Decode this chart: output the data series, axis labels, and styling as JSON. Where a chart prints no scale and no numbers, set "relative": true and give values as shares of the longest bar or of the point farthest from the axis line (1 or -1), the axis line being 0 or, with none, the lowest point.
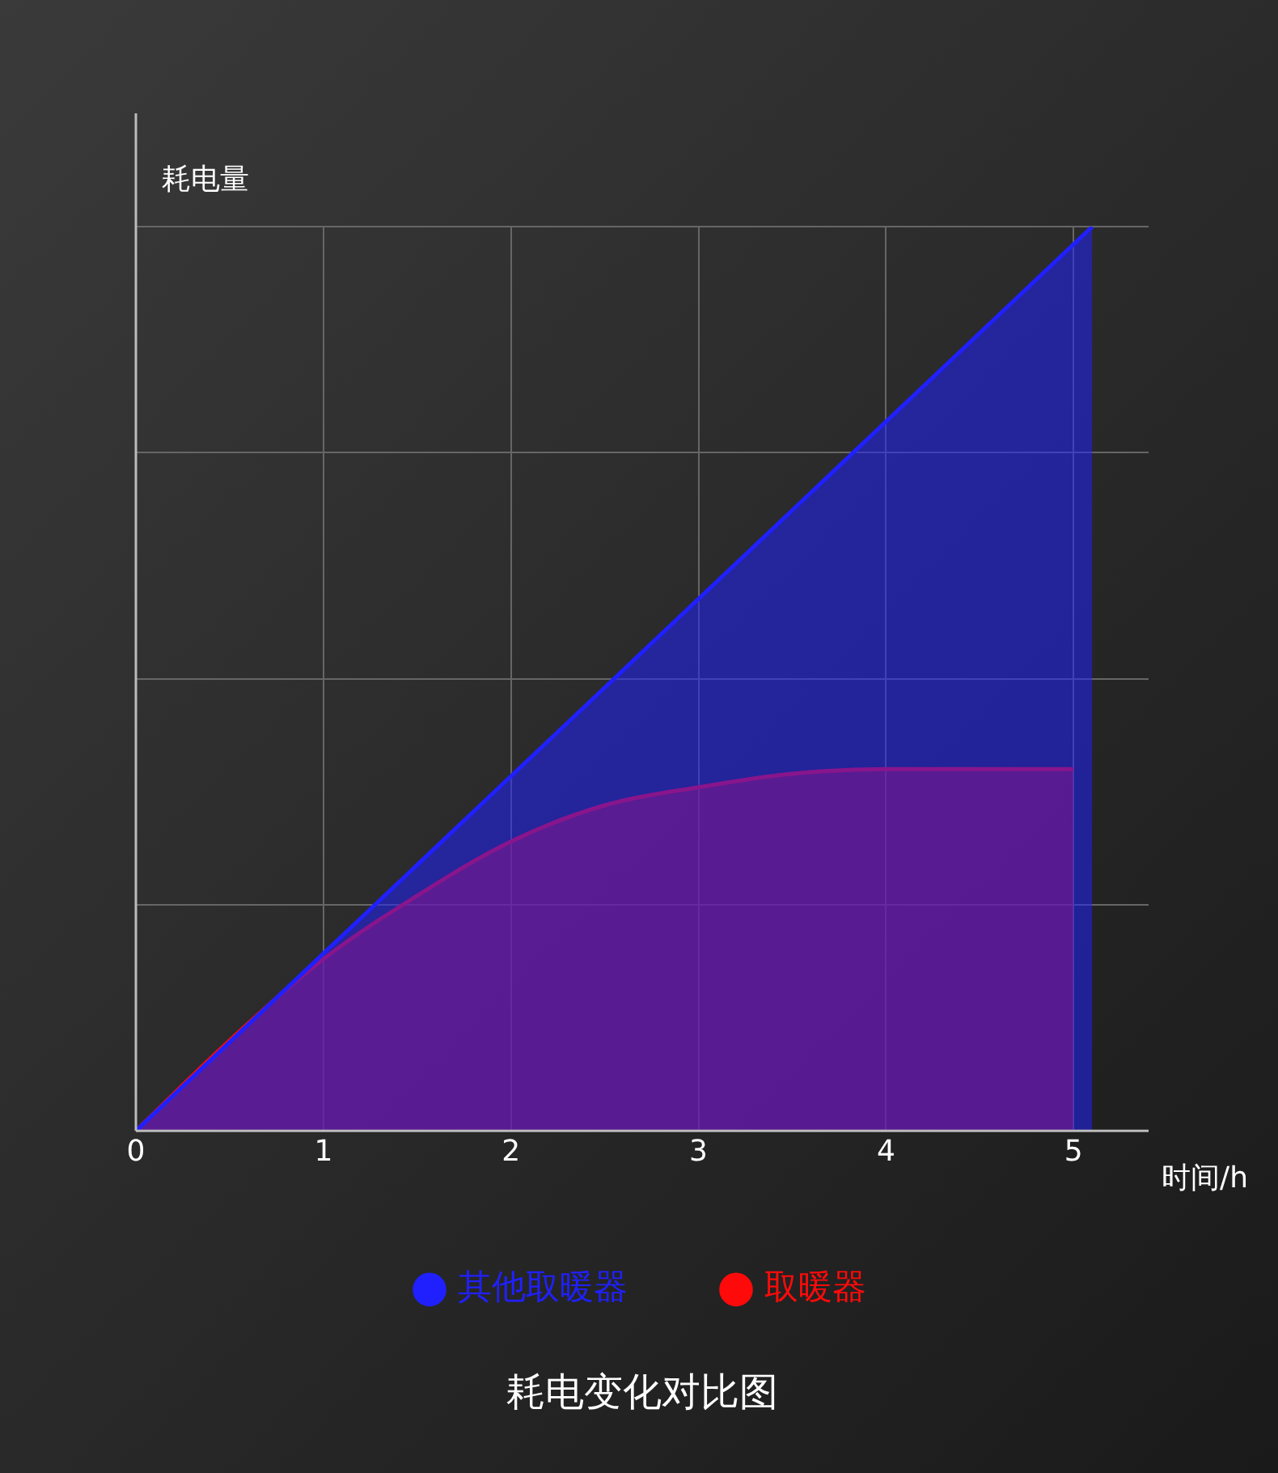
{
  "chart_data": {
    "type": "area",
    "title": "耗电变化对比图",
    "xlabel": "时间/h",
    "ylabel": "耗电量",
    "relative": true,
    "xlim": [
      0,
      5.4
    ],
    "xticks": [
      0,
      1,
      2,
      3,
      4,
      5
    ],
    "grid": true,
    "legend": "bottom",
    "series": [
      {
        "name": "其他取暖器",
        "color": "#2020ff",
        "x": [
          0,
          5.1
        ],
        "values": [
          0,
          1
        ]
      },
      {
        "name": "取暖器",
        "color": "#ff0a0a",
        "x": [
          0,
          0.5,
          1,
          1.5,
          2,
          2.5,
          3,
          3.5,
          4,
          4.5,
          5
        ],
        "values": [
          0,
          0.1,
          0.19,
          0.26,
          0.32,
          0.36,
          0.38,
          0.395,
          0.4,
          0.4,
          0.4
        ]
      }
    ]
  }
}
